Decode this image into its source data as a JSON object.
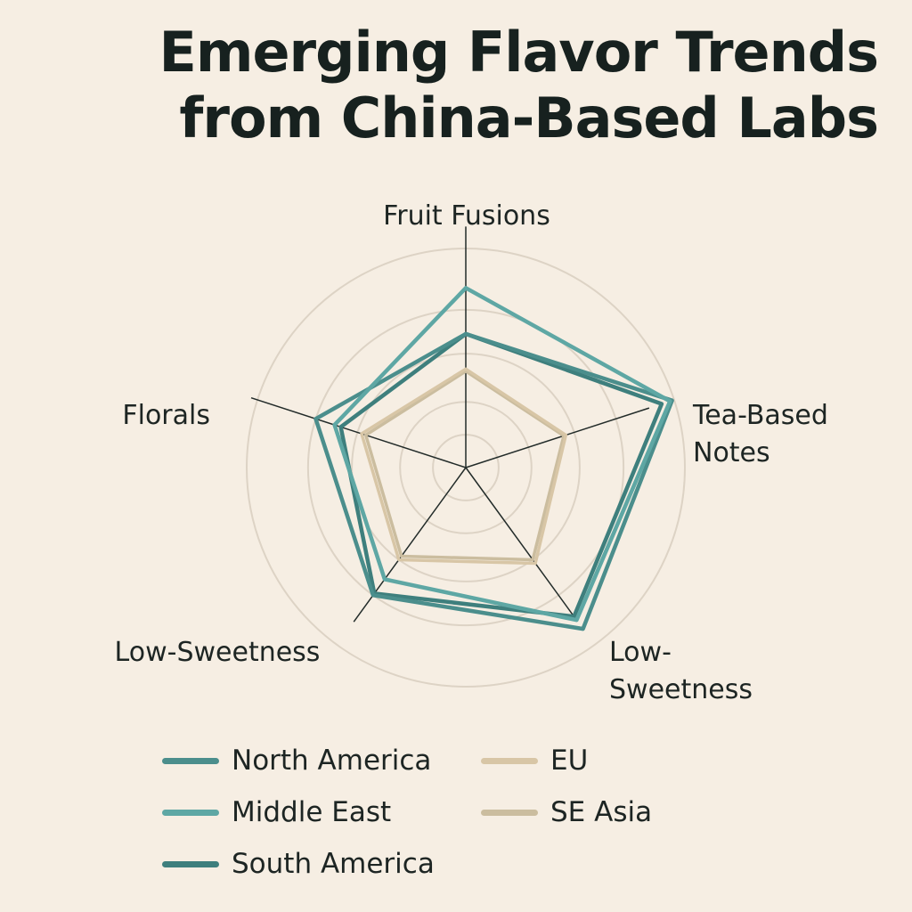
{
  "title_lines": [
    "Emerging Flavor Trends",
    "from China-Based Labs"
  ],
  "chart_data": {
    "type": "radar",
    "title": "Emerging Flavor Trends from China-Based Labs",
    "axes": [
      {
        "label_lines": [
          "Fruit Fusions"
        ]
      },
      {
        "label_lines": [
          "Tea-Based",
          "Notes"
        ]
      },
      {
        "label_lines": [
          "Low-",
          "Sweetness"
        ]
      },
      {
        "label_lines": [
          "Low-Sweetness"
        ]
      },
      {
        "label_lines": [
          "Florals"
        ]
      }
    ],
    "rmax": 1.0,
    "grid_rings": [
      0.15,
      0.3,
      0.52,
      0.72,
      1.0
    ],
    "grid": true,
    "legend_position": "bottom",
    "series": [
      {
        "name": "North America",
        "color": "#4b8e8c",
        "values": [
          0.61,
          0.99,
          0.91,
          0.72,
          0.72
        ]
      },
      {
        "name": "Middle East",
        "color": "#5ea7a4",
        "values": [
          0.82,
          0.98,
          0.86,
          0.63,
          0.63
        ]
      },
      {
        "name": "South America",
        "color": "#3e7f7d",
        "values": [
          0.61,
          0.94,
          0.84,
          0.71,
          0.6
        ]
      },
      {
        "name": "EU",
        "color": "#d8c6a6",
        "values": [
          0.45,
          0.48,
          0.54,
          0.52,
          0.5
        ]
      },
      {
        "name": "SE Asia",
        "color": "#cbbd9f",
        "values": [
          0.44,
          0.47,
          0.52,
          0.5,
          0.48
        ]
      }
    ]
  }
}
